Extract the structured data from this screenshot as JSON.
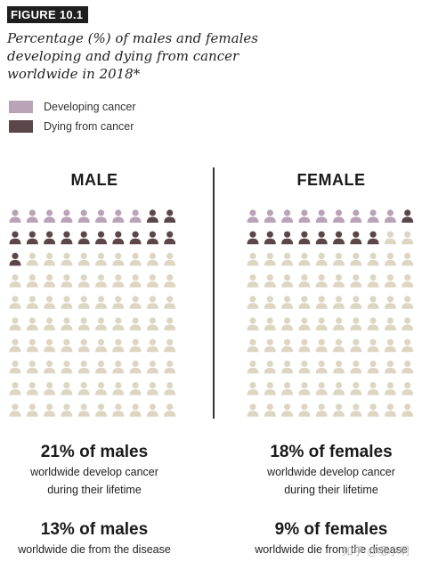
{
  "figure_label": "FIGURE 10.1",
  "title": "Percentage (%) of males and females developing and dying from cancer worldwide in 2018*",
  "legend": [
    {
      "label": "Developing cancer",
      "color": "#b8a4b6"
    },
    {
      "label": "Dying from cancer",
      "color": "#5b4649"
    }
  ],
  "colors": {
    "developing": "#b8a4b6",
    "dying": "#5b4649",
    "none": "#dcd6c3"
  },
  "chart_data": [
    {
      "type": "waffle",
      "title": "MALE",
      "total": 100,
      "series": [
        {
          "name": "Developing cancer",
          "value": 21
        },
        {
          "name": "Dying from cancer",
          "value": 13
        }
      ],
      "stats": [
        {
          "headline": "21% of males",
          "lines": [
            "worldwide develop cancer",
            "during their lifetime"
          ]
        },
        {
          "headline": "13% of males",
          "lines": [
            "worldwide die from the disease"
          ]
        }
      ]
    },
    {
      "type": "waffle",
      "title": "FEMALE",
      "total": 100,
      "series": [
        {
          "name": "Developing cancer",
          "value": 18
        },
        {
          "name": "Dying from cancer",
          "value": 9
        }
      ],
      "stats": [
        {
          "headline": "18% of females",
          "lines": [
            "worldwide develop cancer",
            "during their lifetime"
          ]
        },
        {
          "headline": "9% of females",
          "lines": [
            "worldwide die from the disease"
          ]
        }
      ]
    }
  ],
  "watermark": "知乎 @嗯小啊"
}
